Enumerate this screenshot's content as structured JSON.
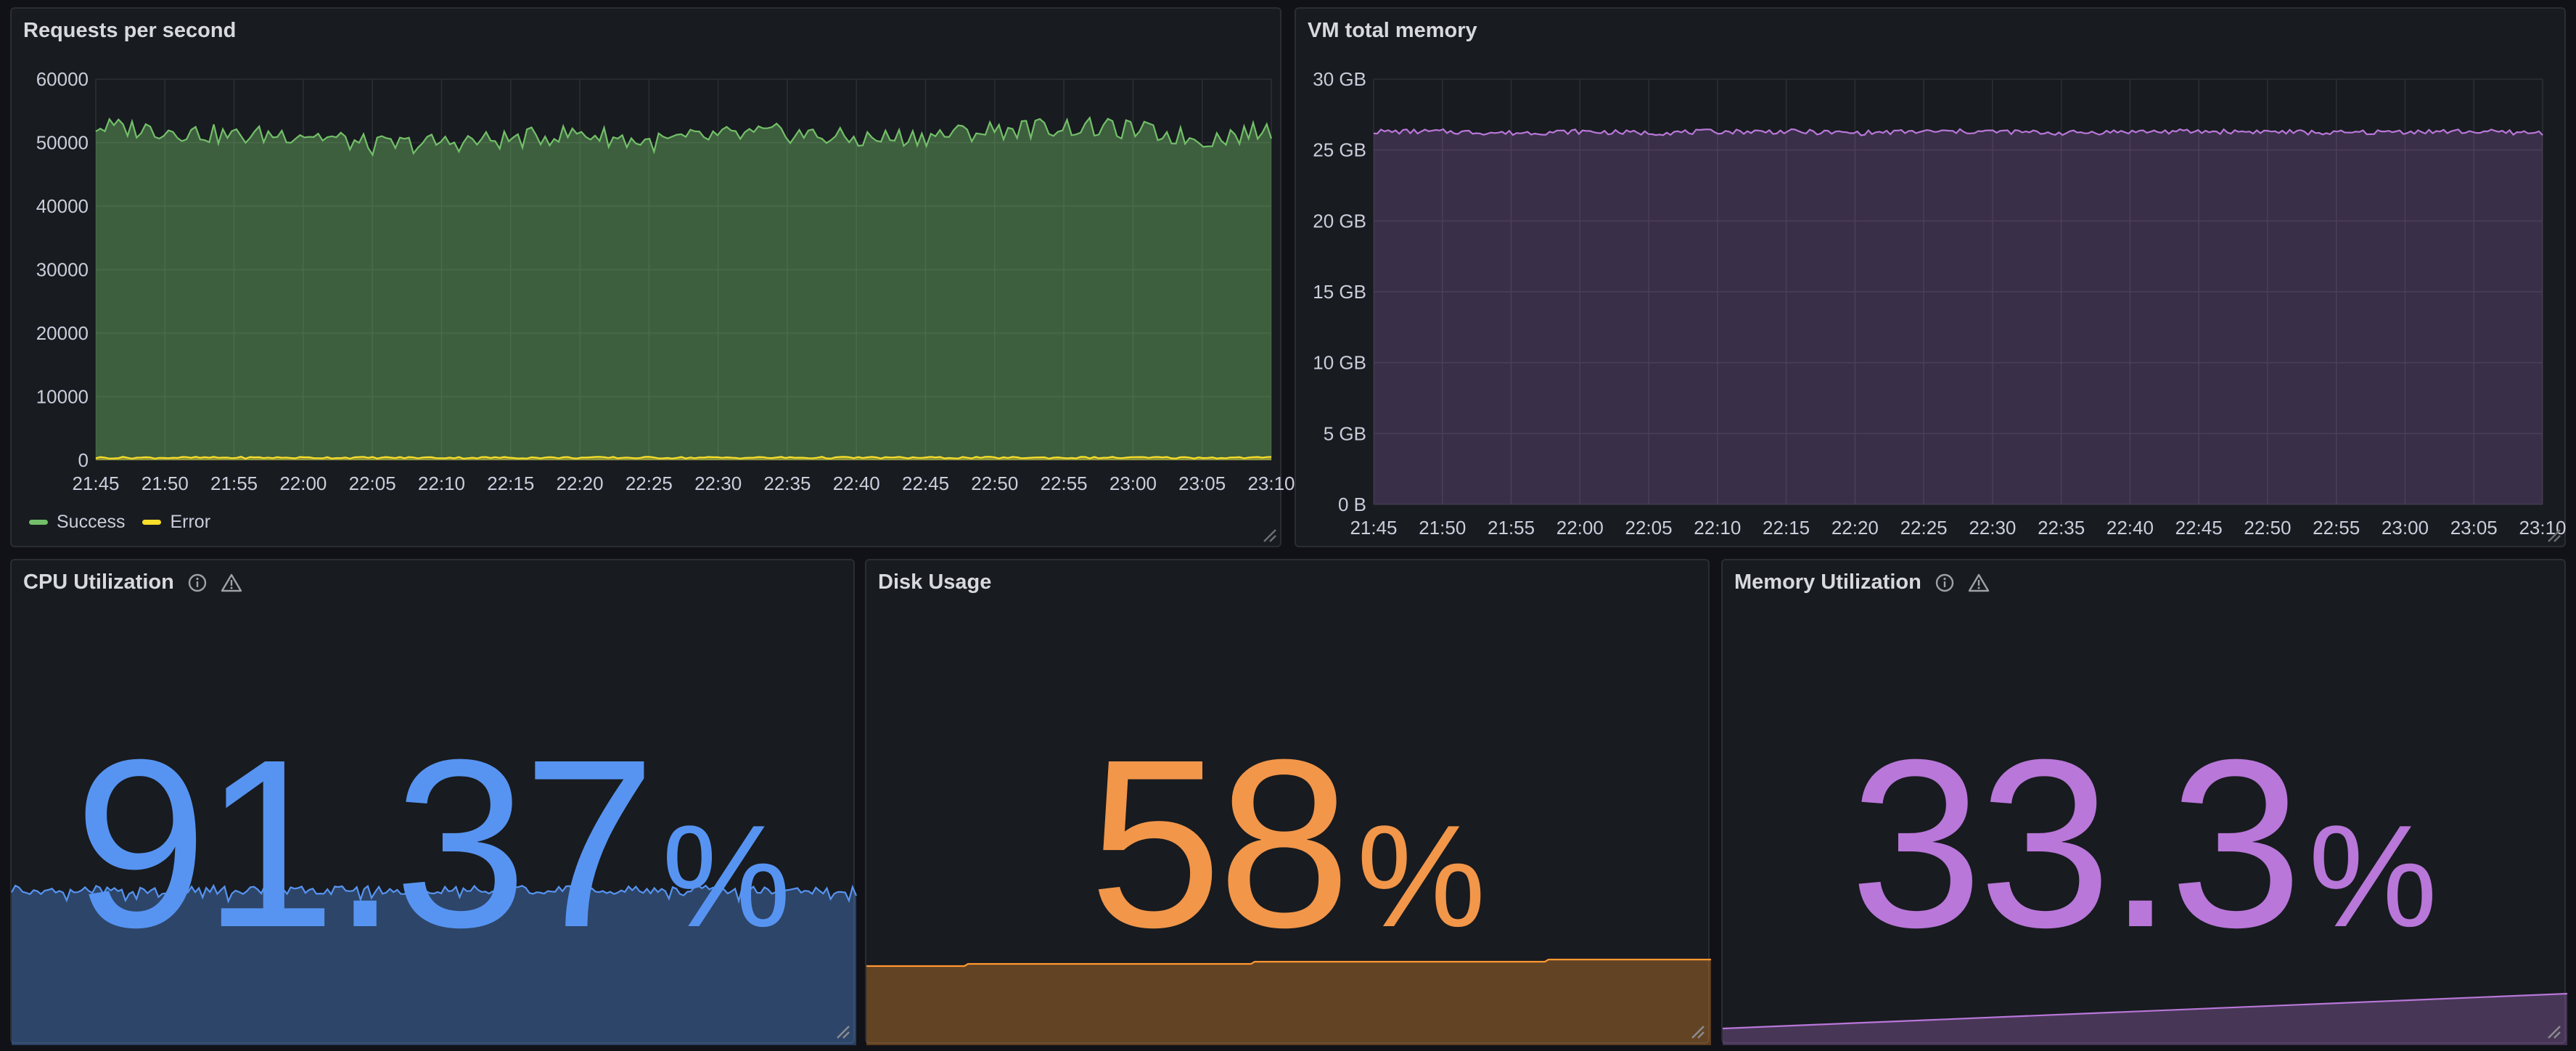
{
  "colors": {
    "success": "#73bf69",
    "error": "#fade2a",
    "memory": "#b877d9",
    "cpu": "#5794f2",
    "disk": "#ff9830",
    "memutil": "#b877d9"
  },
  "panels": {
    "rps": {
      "title": "Requests per second",
      "legend": [
        "Success",
        "Error"
      ]
    },
    "vm_memory": {
      "title": "VM total memory"
    },
    "cpu": {
      "title": "CPU Utilization",
      "value": "91.37",
      "unit": "%",
      "icons": [
        "info-icon",
        "warning-icon"
      ]
    },
    "disk": {
      "title": "Disk Usage",
      "value": "58",
      "unit": "%"
    },
    "memory_util": {
      "title": "Memory Utilization",
      "value": "33.3",
      "unit": "%",
      "icons": [
        "info-icon",
        "warning-icon"
      ]
    }
  },
  "chart_data": [
    {
      "type": "area",
      "title": "Requests per second",
      "x": [
        "21:45",
        "21:50",
        "21:55",
        "22:00",
        "22:05",
        "22:10",
        "22:15",
        "22:20",
        "22:25",
        "22:30",
        "22:35",
        "22:40",
        "22:45",
        "22:50",
        "22:55",
        "23:00",
        "23:05",
        "23:10"
      ],
      "yticks": [
        "0",
        "10000",
        "20000",
        "30000",
        "40000",
        "50000",
        "60000"
      ],
      "ylim": [
        0,
        60000
      ],
      "series": [
        {
          "name": "Success",
          "values": [
            52500,
            52000,
            51000,
            51500,
            49500,
            50000,
            50500,
            51500,
            50000,
            51000,
            51500,
            50500,
            51000,
            52000,
            52500,
            52000,
            50500,
            52000
          ]
        },
        {
          "name": "Error",
          "values": [
            400,
            400,
            400,
            400,
            400,
            400,
            400,
            400,
            400,
            400,
            400,
            400,
            400,
            400,
            400,
            400,
            400,
            400
          ]
        }
      ],
      "legend": "bottom-left",
      "grid": true
    },
    {
      "type": "area",
      "title": "VM total memory",
      "x": [
        "21:45",
        "21:50",
        "21:55",
        "22:00",
        "22:05",
        "22:10",
        "22:15",
        "22:20",
        "22:25",
        "22:30",
        "22:35",
        "22:40",
        "22:45",
        "22:50",
        "22:55",
        "23:00",
        "23:05",
        "23:10"
      ],
      "yticks": [
        "0 B",
        "5 GB",
        "10 GB",
        "15 GB",
        "20 GB",
        "25 GB",
        "30 GB"
      ],
      "ylim": [
        0,
        30
      ],
      "series": [
        {
          "values": [
            26.3,
            26.3,
            26.2,
            26.3,
            26.2,
            26.3,
            26.3,
            26.2,
            26.3,
            26.3,
            26.2,
            26.3,
            26.3,
            26.3,
            26.2,
            26.3,
            26.3,
            26.2
          ]
        }
      ],
      "grid": true
    }
  ]
}
